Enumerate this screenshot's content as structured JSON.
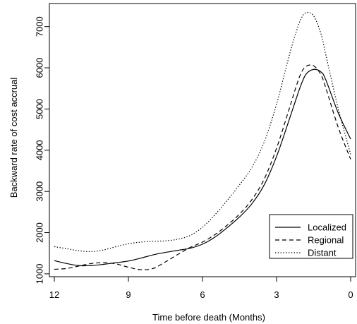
{
  "chart_data": {
    "type": "line",
    "title": "",
    "xlabel": "Time before death (Months)",
    "ylabel": "Backward rate of cost accrual",
    "xlim": [
      12.2,
      -0.2
    ],
    "ylim": [
      930,
      7560
    ],
    "x_reversed": true,
    "x_ticks": [
      12,
      9,
      6,
      3,
      0
    ],
    "y_ticks": [
      1000,
      2000,
      3000,
      4000,
      5000,
      6000,
      7000
    ],
    "grid": false,
    "legend": "bottom-right",
    "series": [
      {
        "name": "Localized",
        "line_style": "solid",
        "x": [
          12,
          11.5,
          11,
          10.5,
          10,
          9.5,
          9,
          8.5,
          8,
          7.5,
          7,
          6.5,
          6,
          5.5,
          5,
          4.5,
          4,
          3.5,
          3,
          2.5,
          2.2,
          2,
          1.8,
          1.5,
          1.2,
          1,
          0.5,
          0
        ],
        "y": [
          1320,
          1250,
          1200,
          1200,
          1230,
          1270,
          1310,
          1380,
          1460,
          1520,
          1570,
          1620,
          1720,
          1890,
          2120,
          2380,
          2700,
          3160,
          3850,
          4720,
          5260,
          5600,
          5850,
          5960,
          5900,
          5700,
          4900,
          4270
        ]
      },
      {
        "name": "Regional",
        "line_style": "dashed",
        "x": [
          12,
          11.5,
          11,
          10.5,
          10,
          9.5,
          9,
          8.5,
          8,
          7.5,
          7,
          6.5,
          6,
          5.5,
          5,
          4.5,
          4,
          3.5,
          3,
          2.5,
          2.2,
          2,
          1.8,
          1.5,
          1.2,
          1,
          0.5,
          0
        ],
        "y": [
          1110,
          1130,
          1190,
          1250,
          1270,
          1240,
          1160,
          1100,
          1130,
          1290,
          1470,
          1640,
          1770,
          1950,
          2180,
          2450,
          2800,
          3300,
          4050,
          4980,
          5560,
          5880,
          6040,
          6050,
          5830,
          5500,
          4550,
          3780
        ]
      },
      {
        "name": "Distant",
        "line_style": "dotted",
        "x": [
          12,
          11.5,
          11,
          10.5,
          10,
          9.5,
          9,
          8.5,
          8,
          7.5,
          7,
          6.5,
          6,
          5.5,
          5,
          4.5,
          4,
          3.5,
          3,
          2.5,
          2.2,
          2,
          1.8,
          1.5,
          1.2,
          1,
          0.5,
          0
        ],
        "y": [
          1660,
          1610,
          1560,
          1540,
          1580,
          1660,
          1730,
          1770,
          1790,
          1800,
          1840,
          1930,
          2130,
          2430,
          2780,
          3160,
          3580,
          4200,
          5120,
          6270,
          6880,
          7200,
          7340,
          7260,
          6820,
          6300,
          5000,
          3900
        ]
      }
    ]
  }
}
